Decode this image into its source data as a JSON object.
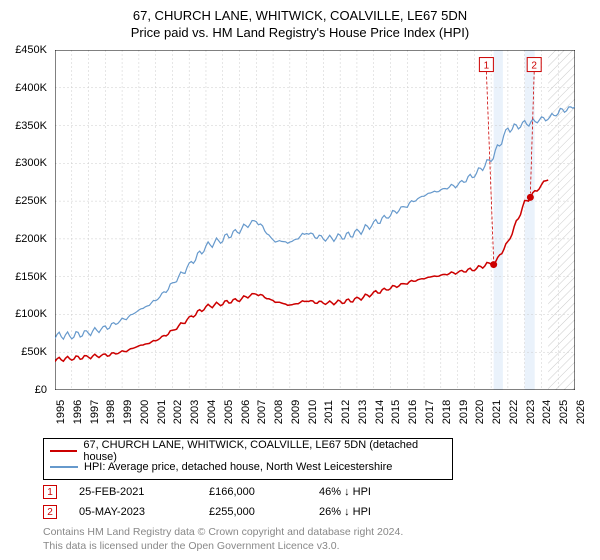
{
  "title": {
    "line1": "67, CHURCH LANE, WHITWICK, COALVILLE, LE67 5DN",
    "line2": "Price paid vs. HM Land Registry's House Price Index (HPI)"
  },
  "chart": {
    "type": "line",
    "background_color": "#ffffff",
    "grid_color": "#cccccc",
    "border_color": "#000000",
    "y_axis": {
      "min": 0,
      "max": 450000,
      "step": 50000,
      "labels": [
        "£0",
        "£50K",
        "£100K",
        "£150K",
        "£200K",
        "£250K",
        "£300K",
        "£350K",
        "£400K",
        "£450K"
      ]
    },
    "x_axis": {
      "min": 1995,
      "max": 2026,
      "step": 1,
      "labels": [
        "1995",
        "1996",
        "1997",
        "1998",
        "1999",
        "2000",
        "2001",
        "2002",
        "2003",
        "2004",
        "2005",
        "2006",
        "2007",
        "2008",
        "2009",
        "2010",
        "2011",
        "2012",
        "2013",
        "2014",
        "2015",
        "2016",
        "2017",
        "2018",
        "2019",
        "2020",
        "2021",
        "2022",
        "2023",
        "2024",
        "2025",
        "2026"
      ]
    },
    "shaded_regions": [
      {
        "x_start": 2021.15,
        "x_end": 2021.7,
        "color": "#eaf2fb"
      },
      {
        "x_start": 2023.0,
        "x_end": 2023.6,
        "color": "#eaf2fb"
      }
    ],
    "hatched_region": {
      "x_start": 2024.4,
      "x_end": 2026,
      "stroke": "#999999"
    },
    "series": [
      {
        "id": "property",
        "color": "#cc0000",
        "line_width": 1.5,
        "data": [
          [
            1995,
            40000
          ],
          [
            1996,
            42000
          ],
          [
            1997,
            44000
          ],
          [
            1998,
            46000
          ],
          [
            1999,
            50000
          ],
          [
            2000,
            58000
          ],
          [
            2001,
            65000
          ],
          [
            2002,
            78000
          ],
          [
            2003,
            95000
          ],
          [
            2004,
            110000
          ],
          [
            2005,
            115000
          ],
          [
            2006,
            120000
          ],
          [
            2007,
            128000
          ],
          [
            2008,
            118000
          ],
          [
            2009,
            112000
          ],
          [
            2010,
            118000
          ],
          [
            2011,
            115000
          ],
          [
            2012,
            116000
          ],
          [
            2013,
            120000
          ],
          [
            2014,
            128000
          ],
          [
            2015,
            135000
          ],
          [
            2016,
            142000
          ],
          [
            2017,
            148000
          ],
          [
            2018,
            152000
          ],
          [
            2019,
            156000
          ],
          [
            2020,
            160000
          ],
          [
            2021,
            168000
          ],
          [
            2021.15,
            166000
          ],
          [
            2022,
            195000
          ],
          [
            2023,
            248000
          ],
          [
            2023.34,
            255000
          ],
          [
            2024,
            272000
          ],
          [
            2024.4,
            278000
          ]
        ]
      },
      {
        "id": "hpi",
        "color": "#6699cc",
        "line_width": 1.2,
        "data": [
          [
            1995,
            72000
          ],
          [
            1996,
            72000
          ],
          [
            1997,
            76000
          ],
          [
            1998,
            82000
          ],
          [
            1999,
            92000
          ],
          [
            2000,
            105000
          ],
          [
            2001,
            118000
          ],
          [
            2002,
            140000
          ],
          [
            2003,
            165000
          ],
          [
            2004,
            190000
          ],
          [
            2005,
            200000
          ],
          [
            2006,
            212000
          ],
          [
            2007,
            225000
          ],
          [
            2008,
            198000
          ],
          [
            2009,
            195000
          ],
          [
            2010,
            208000
          ],
          [
            2011,
            200000
          ],
          [
            2012,
            202000
          ],
          [
            2013,
            208000
          ],
          [
            2014,
            220000
          ],
          [
            2015,
            232000
          ],
          [
            2016,
            245000
          ],
          [
            2017,
            258000
          ],
          [
            2018,
            265000
          ],
          [
            2019,
            272000
          ],
          [
            2020,
            285000
          ],
          [
            2021,
            305000
          ],
          [
            2022,
            345000
          ],
          [
            2023,
            352000
          ],
          [
            2024,
            358000
          ],
          [
            2024.5,
            360000
          ],
          [
            2025,
            368000
          ],
          [
            2026,
            375000
          ]
        ]
      }
    ],
    "markers": [
      {
        "id": 1,
        "x": 2021.15,
        "y": 166000,
        "color": "#cc0000",
        "label": "1",
        "callout_x": 2020.3,
        "callout_y": 440000
      },
      {
        "id": 2,
        "x": 2023.34,
        "y": 255000,
        "color": "#cc0000",
        "label": "2",
        "callout_x": 2023.15,
        "callout_y": 440000
      }
    ]
  },
  "legend": {
    "items": [
      {
        "color": "#cc0000",
        "label": "67, CHURCH LANE, WHITWICK, COALVILLE, LE67 5DN (detached house)"
      },
      {
        "color": "#6699cc",
        "label": "HPI: Average price, detached house, North West Leicestershire"
      }
    ]
  },
  "data_points": [
    {
      "marker": "1",
      "marker_color": "#cc0000",
      "date": "25-FEB-2021",
      "price": "£166,000",
      "pct": "46% ↓ HPI"
    },
    {
      "marker": "2",
      "marker_color": "#cc0000",
      "date": "05-MAY-2023",
      "price": "£255,000",
      "pct": "26% ↓ HPI"
    }
  ],
  "footer": {
    "line1": "Contains HM Land Registry data © Crown copyright and database right 2024.",
    "line2": "This data is licensed under the Open Government Licence v3.0."
  }
}
